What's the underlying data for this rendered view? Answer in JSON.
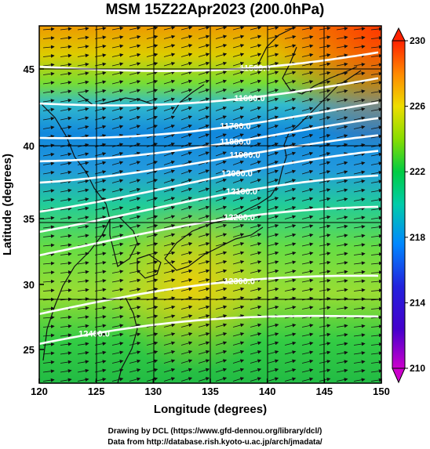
{
  "title": "MSM 15Z22Apr2023 (200.0hPa)",
  "x_axis": {
    "label": "Longitude (degrees)",
    "ticks": [
      "120",
      "125",
      "130",
      "135",
      "140",
      "145",
      "150"
    ]
  },
  "y_axis": {
    "label": "Latitude  (degrees)",
    "ticks": [
      "25",
      "30",
      "35",
      "40",
      "45"
    ]
  },
  "colorbar": {
    "ticks": [
      "210",
      "214",
      "218",
      "222",
      "226",
      "230"
    ],
    "colors": [
      "#cc00cc",
      "#2222dd",
      "#00aaff",
      "#00dd88",
      "#33cc33",
      "#ccee00",
      "#ffcc00",
      "#ff8800",
      "#ff2200"
    ]
  },
  "contours": [
    {
      "label": "11500.0"
    },
    {
      "label": "11600.0"
    },
    {
      "label": "11700.0"
    },
    {
      "label": "11800.0"
    },
    {
      "label": "11900.0"
    },
    {
      "label": "12000.0"
    },
    {
      "label": "12100.0"
    },
    {
      "label": "12200.0"
    },
    {
      "label": "12300.0"
    },
    {
      "label": "12400.0"
    }
  ],
  "credits": {
    "line1": "Drawing by DCL (https://www.gfd-dennou.org/library/dcl/)",
    "line2": "Data from http://database.rish.kyoto-u.ac.jp/arch/jmadata/"
  }
}
